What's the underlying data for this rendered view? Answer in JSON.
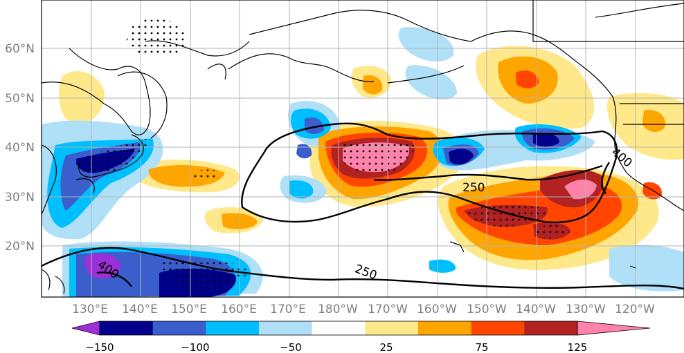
{
  "map": {
    "lat_ticks": [
      "60°N",
      "50°N",
      "40°N",
      "30°N",
      "20°N"
    ],
    "lon_ticks": [
      "130°E",
      "140°E",
      "150°E",
      "160°E",
      "170°E",
      "180°W",
      "170°W",
      "160°W",
      "150°W",
      "140°W",
      "130°W",
      "120°W"
    ],
    "contour_labels": [
      "250",
      "250",
      "400",
      "400"
    ]
  },
  "colorbar": {
    "tick_labels": [
      "−150",
      "−100",
      "−50",
      "25",
      "75",
      "125"
    ],
    "colors": [
      "#9b30d9",
      "#00008b",
      "#3a5fcd",
      "#00bfff",
      "#b0e0f8",
      "#ffffff",
      "#ffe88a",
      "#ffa500",
      "#ff4500",
      "#b22222",
      "#ff82ab"
    ]
  }
}
